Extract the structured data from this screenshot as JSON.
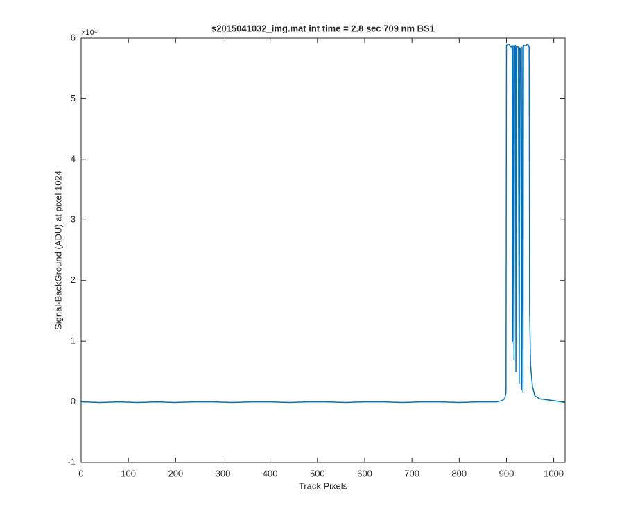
{
  "chart_data": {
    "type": "line",
    "title": "s2015041032_img.mat int time = 2.8 sec  709 nm BS1",
    "x_label": "Track Pixels",
    "y_label": "Signal-BackGround (ADU) at pixel 1024",
    "y_multiplier": "×10⁴",
    "color": "#0072bd",
    "x": [
      0,
      40,
      80,
      120,
      160,
      200,
      240,
      280,
      320,
      360,
      400,
      440,
      480,
      520,
      560,
      600,
      640,
      680,
      720,
      760,
      800,
      840,
      880,
      890,
      896,
      899,
      900,
      905,
      910,
      912,
      913,
      914,
      916,
      917,
      919,
      920,
      921,
      925,
      927,
      928,
      930,
      932,
      933,
      935,
      936,
      940,
      945,
      948,
      949,
      951,
      955,
      960,
      970,
      1000,
      1024
    ],
    "values": [
      0.0,
      -0.01,
      0.0,
      -0.01,
      0.0,
      -0.01,
      0.0,
      0.0,
      -0.01,
      0.0,
      0.0,
      -0.01,
      0.0,
      0.0,
      -0.01,
      0.0,
      0.0,
      -0.01,
      0.0,
      0.0,
      -0.01,
      0.0,
      0.0,
      0.02,
      0.05,
      0.15,
      5.88,
      5.9,
      5.85,
      5.88,
      1.0,
      5.87,
      0.7,
      5.85,
      5.88,
      0.5,
      5.86,
      5.85,
      0.3,
      5.84,
      5.83,
      0.2,
      5.85,
      0.15,
      5.88,
      5.87,
      5.9,
      5.85,
      1.5,
      0.6,
      0.25,
      0.1,
      0.05,
      0.02,
      -0.01
    ],
    "xlim": [
      0,
      1024
    ],
    "xticks": [
      0,
      100,
      200,
      300,
      400,
      500,
      600,
      700,
      800,
      900,
      1000
    ],
    "ylim": [
      -1,
      6
    ],
    "yticks": [
      -1,
      0,
      1,
      2,
      3,
      4,
      5,
      6
    ]
  }
}
